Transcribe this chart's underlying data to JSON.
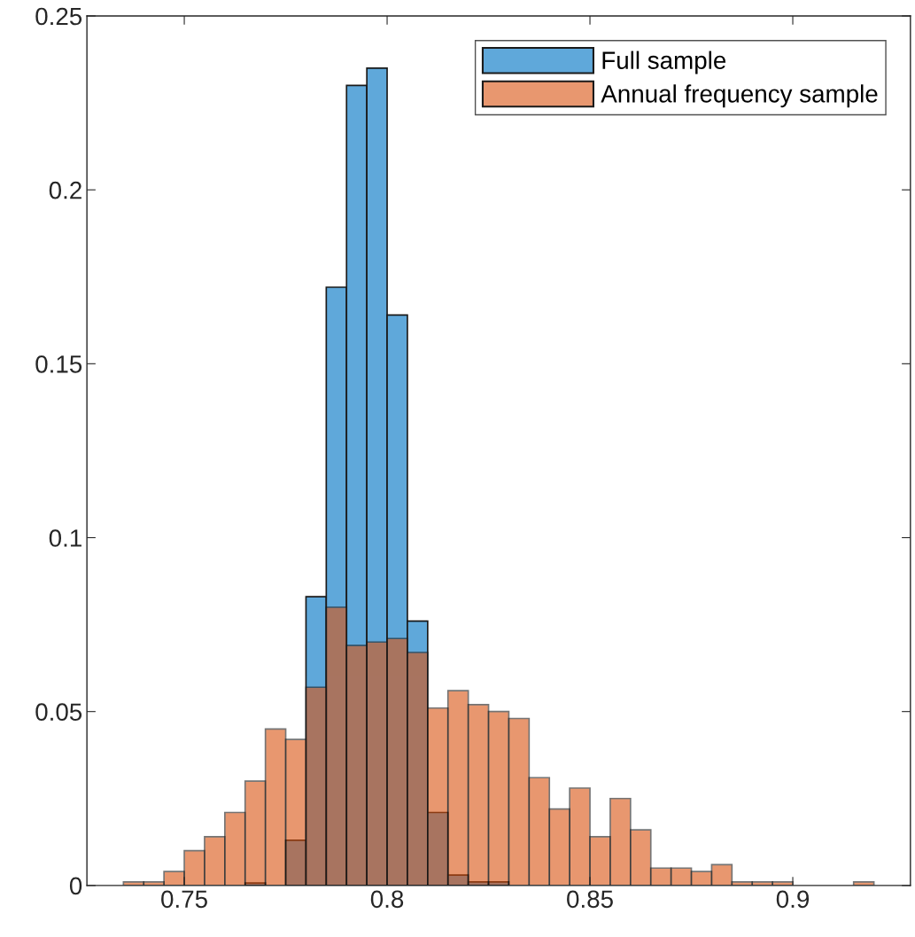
{
  "chart_data": {
    "type": "histogram",
    "bins": [
      0.735,
      0.74,
      0.745,
      0.75,
      0.755,
      0.76,
      0.765,
      0.77,
      0.775,
      0.78,
      0.785,
      0.79,
      0.795,
      0.8,
      0.805,
      0.81,
      0.815,
      0.82,
      0.825,
      0.83,
      0.835,
      0.84,
      0.845,
      0.85,
      0.855,
      0.86,
      0.865,
      0.87,
      0.875,
      0.88,
      0.885,
      0.89,
      0.895,
      0.9,
      0.905,
      0.91,
      0.915,
      0.92
    ],
    "series": [
      {
        "name": "Full sample",
        "color": "#5fa8da",
        "values": [
          null,
          null,
          null,
          null,
          null,
          null,
          0.0007,
          null,
          0.013,
          0.083,
          0.172,
          0.23,
          0.235,
          0.164,
          0.076,
          0.021,
          0.003,
          0.001,
          0.001,
          null,
          null,
          null,
          null,
          null,
          null,
          null,
          null,
          null,
          null,
          null,
          null,
          null,
          null,
          null,
          null,
          null,
          null
        ]
      },
      {
        "name": "Annual frequency sample",
        "color": "#e8976f",
        "values": [
          0.001,
          0.001,
          0.004,
          0.01,
          0.014,
          0.021,
          0.03,
          0.045,
          0.042,
          0.057,
          0.08,
          0.069,
          0.07,
          0.071,
          0.067,
          0.051,
          0.056,
          0.052,
          0.05,
          0.048,
          0.031,
          0.022,
          0.028,
          0.014,
          0.025,
          0.016,
          0.005,
          0.005,
          0.004,
          0.006,
          0.001,
          0.001,
          0.001,
          null,
          null,
          null,
          0.001
        ]
      }
    ],
    "xlim": [
      0.726,
      0.929
    ],
    "ylim": [
      0,
      0.25
    ],
    "xticks": [
      0.75,
      0.8,
      0.85,
      0.9
    ],
    "yticks": [
      0,
      0.05,
      0.1,
      0.15,
      0.2,
      0.25
    ],
    "legend": "top right",
    "grid": false
  }
}
